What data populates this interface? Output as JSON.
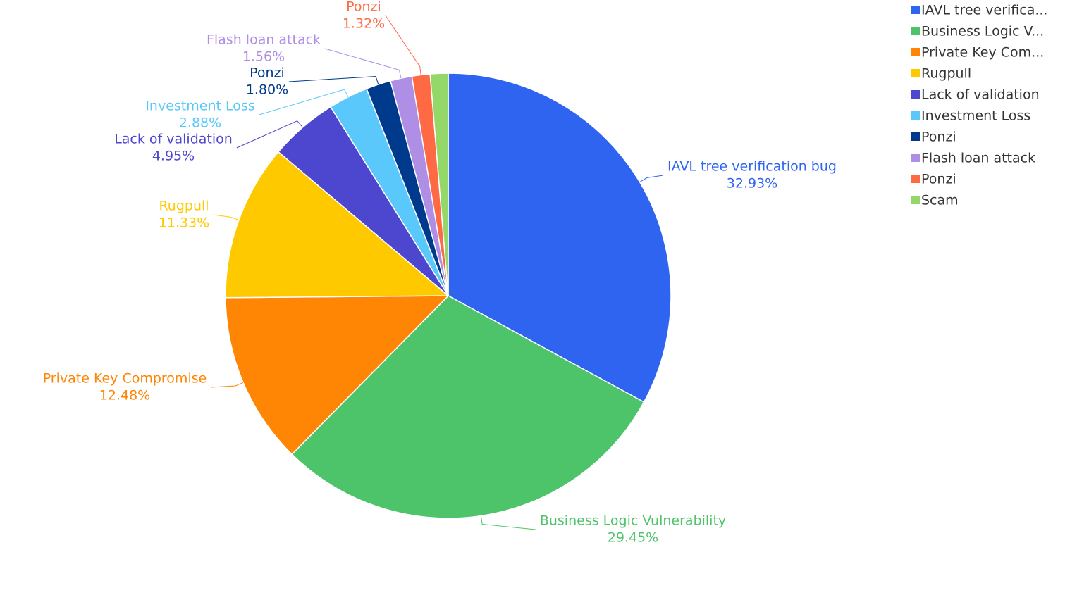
{
  "chart_data": {
    "type": "pie",
    "categories": [
      "IAVL tree verification bug",
      "Business Logic Vulnerability",
      "Private Key Compromise",
      "Rugpull",
      "Lack of validation",
      "Investment Loss",
      "Ponzi",
      "Flash loan attack",
      "Ponzi",
      "Scam"
    ],
    "values": [
      32.93,
      29.45,
      12.48,
      11.33,
      4.95,
      2.88,
      1.8,
      1.56,
      1.32,
      1.3
    ],
    "value_labels": [
      "32.93%",
      "29.45%",
      "12.48%",
      "11.33%",
      "4.95%",
      "2.88%",
      "1.80%",
      "1.56%",
      "1.32%",
      null
    ],
    "legend_labels": [
      "IAVL tree verifica...",
      "Business Logic V...",
      "Private Key Com...",
      "Rugpull",
      "Lack of validation",
      "Investment Loss",
      "Ponzi",
      "Flash loan attack",
      "Ponzi",
      "Scam"
    ],
    "colors": [
      "#2e64f0",
      "#4ec46a",
      "#ff8505",
      "#ffc900",
      "#4d46cf",
      "#5ac8fa",
      "#003a8c",
      "#af8ee6",
      "#ff6a45",
      "#95d86a"
    ],
    "legend_position": "top-right"
  }
}
